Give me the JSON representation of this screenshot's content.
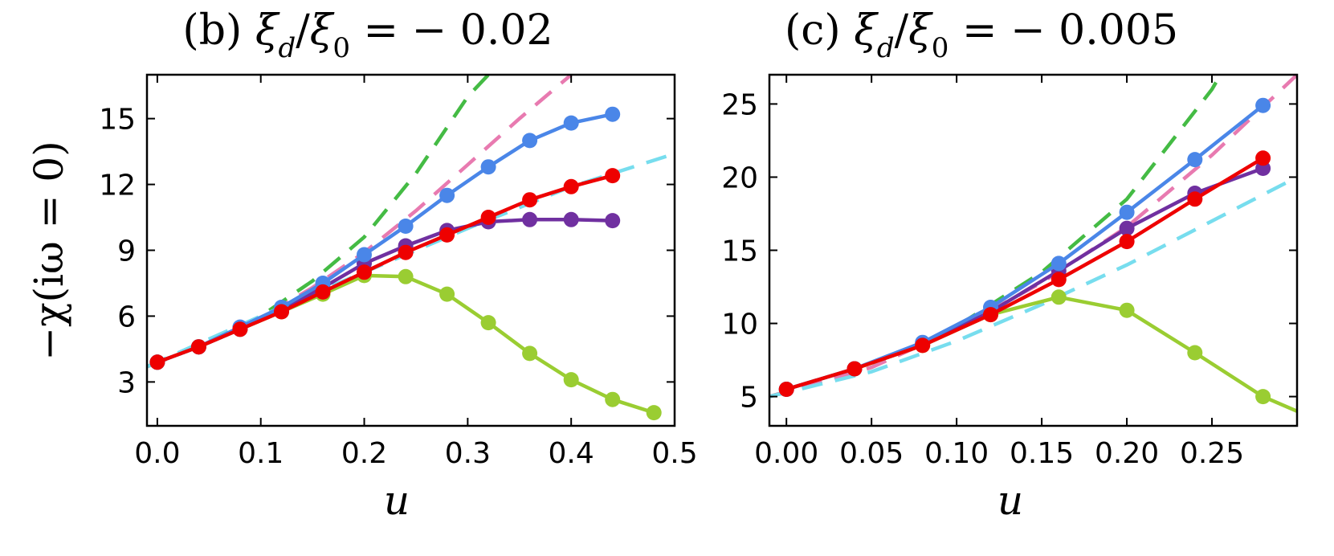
{
  "chart_data": [
    {
      "type": "line",
      "title": "(b) ξ_d/ξ_0 = −0.02",
      "title_parts": {
        "prefix": "(b) ",
        "xi": "ξ",
        "sub_d": "d",
        "slash": "/",
        "sub_0": "0",
        "equals": " = ",
        "value": "− 0.02"
      },
      "xlabel": "u",
      "ylabel": "−χ(iω = 0)",
      "xlim": [
        -0.01,
        0.5
      ],
      "ylim": [
        1,
        17
      ],
      "xticks": [
        0.0,
        0.1,
        0.2,
        0.3,
        0.4,
        0.5
      ],
      "xtick_labels": [
        "0.0",
        "0.1",
        "0.2",
        "0.3",
        "0.4",
        "0.5"
      ],
      "yticks": [
        3,
        6,
        9,
        12,
        15
      ],
      "ytick_labels": [
        "3",
        "6",
        "9",
        "12",
        "15"
      ],
      "series": [
        {
          "name": "yellow-green",
          "color": "#9acd32",
          "style": "solid-markers",
          "x": [
            0.0,
            0.04,
            0.08,
            0.12,
            0.16,
            0.2,
            0.24,
            0.28,
            0.32,
            0.36,
            0.4,
            0.44,
            0.48
          ],
          "y": [
            3.9,
            4.6,
            5.4,
            6.2,
            7.0,
            7.85,
            7.8,
            7.0,
            5.7,
            4.3,
            3.1,
            2.2,
            1.6
          ]
        },
        {
          "name": "purple",
          "color": "#7030a0",
          "style": "solid-markers",
          "x": [
            0.0,
            0.04,
            0.08,
            0.12,
            0.16,
            0.2,
            0.24,
            0.28,
            0.32,
            0.36,
            0.4,
            0.44
          ],
          "y": [
            3.9,
            4.6,
            5.4,
            6.3,
            7.3,
            8.4,
            9.2,
            9.9,
            10.3,
            10.4,
            10.4,
            10.35
          ]
        },
        {
          "name": "blue",
          "color": "#4a86e8",
          "style": "solid-markers",
          "x": [
            0.0,
            0.04,
            0.08,
            0.12,
            0.16,
            0.2,
            0.24,
            0.28,
            0.32,
            0.36,
            0.4,
            0.44
          ],
          "y": [
            3.9,
            4.6,
            5.5,
            6.4,
            7.5,
            8.8,
            10.1,
            11.5,
            12.8,
            14.0,
            14.8,
            15.2
          ]
        },
        {
          "name": "red",
          "color": "#ee0000",
          "style": "solid-markers",
          "x": [
            0.0,
            0.04,
            0.08,
            0.12,
            0.16,
            0.2,
            0.24,
            0.28,
            0.32,
            0.36,
            0.4,
            0.44
          ],
          "y": [
            3.9,
            4.6,
            5.4,
            6.2,
            7.1,
            8.0,
            8.9,
            9.7,
            10.5,
            11.3,
            11.9,
            12.4
          ]
        },
        {
          "name": "green-dashed",
          "color": "#44bb44",
          "style": "dashed",
          "x": [
            -0.01,
            0.05,
            0.1,
            0.15,
            0.2,
            0.25,
            0.3,
            0.32
          ],
          "y": [
            3.7,
            4.8,
            6.0,
            7.6,
            9.6,
            12.5,
            16.0,
            17.0
          ]
        },
        {
          "name": "pink-dashed",
          "color": "#e87ab0",
          "style": "dashed",
          "x": [
            -0.01,
            0.05,
            0.1,
            0.15,
            0.2,
            0.25,
            0.3,
            0.35,
            0.4
          ],
          "y": [
            3.7,
            4.8,
            5.9,
            7.3,
            8.9,
            10.8,
            12.9,
            15.0,
            17.0
          ]
        },
        {
          "name": "cyan-dashed",
          "color": "#77ddee",
          "style": "dashed",
          "x": [
            -0.01,
            0.1,
            0.2,
            0.3,
            0.4,
            0.5
          ],
          "y": [
            3.7,
            6.0,
            8.0,
            10.0,
            11.9,
            13.4
          ]
        }
      ]
    },
    {
      "type": "line",
      "title": "(c) ξ_d/ξ_0 = −0.005",
      "title_parts": {
        "prefix": "(c) ",
        "xi": "ξ",
        "sub_d": "d",
        "slash": "/",
        "sub_0": "0",
        "equals": " = ",
        "value": "− 0.005"
      },
      "xlabel": "u",
      "ylabel": "",
      "xlim": [
        -0.01,
        0.3
      ],
      "ylim": [
        3,
        27
      ],
      "xticks": [
        0.0,
        0.05,
        0.1,
        0.15,
        0.2,
        0.25
      ],
      "xtick_labels": [
        "0.00",
        "0.05",
        "0.10",
        "0.15",
        "0.20",
        "0.25"
      ],
      "yticks": [
        5,
        10,
        15,
        20,
        25
      ],
      "ytick_labels": [
        "5",
        "10",
        "15",
        "20",
        "25"
      ],
      "series": [
        {
          "name": "yellow-green",
          "color": "#9acd32",
          "style": "solid-markers",
          "x": [
            0.0,
            0.04,
            0.08,
            0.12,
            0.16,
            0.2,
            0.24,
            0.28,
            0.3
          ],
          "y": [
            5.5,
            6.9,
            8.5,
            10.6,
            11.8,
            10.9,
            8.0,
            5.0,
            4.0
          ],
          "marker_count": 8
        },
        {
          "name": "purple",
          "color": "#7030a0",
          "style": "solid-markers",
          "x": [
            0.0,
            0.04,
            0.08,
            0.12,
            0.16,
            0.2,
            0.24,
            0.28
          ],
          "y": [
            5.5,
            6.9,
            8.6,
            10.8,
            13.6,
            16.5,
            18.9,
            20.6
          ]
        },
        {
          "name": "blue",
          "color": "#4a86e8",
          "style": "solid-markers",
          "x": [
            0.0,
            0.04,
            0.08,
            0.12,
            0.16,
            0.2,
            0.24,
            0.28
          ],
          "y": [
            5.5,
            6.9,
            8.7,
            11.1,
            14.1,
            17.6,
            21.2,
            24.9
          ]
        },
        {
          "name": "red",
          "color": "#ee0000",
          "style": "solid-markers",
          "x": [
            0.0,
            0.04,
            0.08,
            0.12,
            0.16,
            0.2,
            0.24,
            0.28
          ],
          "y": [
            5.5,
            6.9,
            8.5,
            10.6,
            13.0,
            15.6,
            18.5,
            21.3
          ]
        },
        {
          "name": "green-dashed",
          "color": "#44bb44",
          "style": "dashed",
          "x": [
            -0.01,
            0.05,
            0.1,
            0.15,
            0.2,
            0.25,
            0.255
          ],
          "y": [
            5.0,
            7.0,
            9.8,
            13.5,
            18.5,
            26.0,
            27.0
          ]
        },
        {
          "name": "pink-dashed",
          "color": "#e87ab0",
          "style": "dashed",
          "x": [
            -0.01,
            0.05,
            0.1,
            0.15,
            0.2,
            0.25,
            0.3
          ],
          "y": [
            5.0,
            7.0,
            9.6,
            12.8,
            16.6,
            21.5,
            27.0
          ]
        },
        {
          "name": "cyan-dashed",
          "color": "#77ddee",
          "style": "dashed",
          "x": [
            -0.01,
            0.05,
            0.1,
            0.15,
            0.2,
            0.25,
            0.3
          ],
          "y": [
            5.0,
            6.7,
            8.8,
            11.3,
            14.0,
            17.0,
            20.0
          ]
        }
      ]
    }
  ]
}
